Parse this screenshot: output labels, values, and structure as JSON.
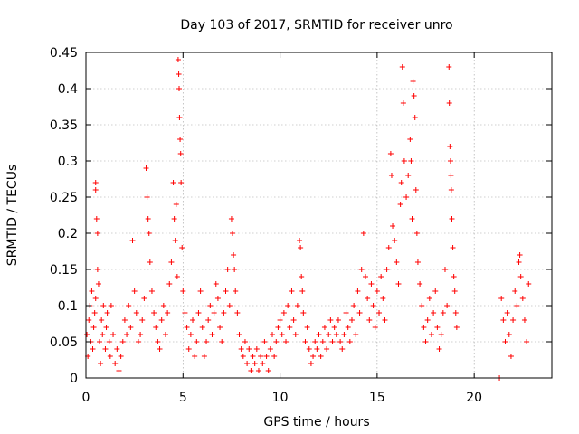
{
  "chart_data": {
    "type": "scatter",
    "title": "Day 103 of 2017, SRMTID for receiver unro",
    "xlabel": "GPS time / hours",
    "ylabel": "SRMTID / TECUs",
    "xlim": [
      0,
      24
    ],
    "ylim": [
      0,
      0.45
    ],
    "xticks": [
      0,
      5,
      10,
      15,
      20
    ],
    "yticks": [
      0,
      0.05,
      0.1,
      0.15,
      0.2,
      0.25,
      0.3,
      0.35,
      0.4,
      0.45
    ],
    "xtick_labels": [
      "0",
      "5",
      "10",
      "15",
      "20"
    ],
    "ytick_labels": [
      "0",
      "0.05",
      "0.1",
      "0.15",
      "0.2",
      "0.25",
      "0.3",
      "0.35",
      "0.4",
      "0.45"
    ],
    "marker": "+",
    "color": "#ff0000",
    "grid": true,
    "series": [
      {
        "name": "SRMTID",
        "points": [
          [
            0.05,
            0.06
          ],
          [
            0.1,
            0.03
          ],
          [
            0.15,
            0.08
          ],
          [
            0.2,
            0.1
          ],
          [
            0.25,
            0.05
          ],
          [
            0.3,
            0.12
          ],
          [
            0.35,
            0.04
          ],
          [
            0.4,
            0.07
          ],
          [
            0.45,
            0.09
          ],
          [
            0.5,
            0.11
          ],
          [
            0.5,
            0.27
          ],
          [
            0.5,
            0.26
          ],
          [
            0.55,
            0.22
          ],
          [
            0.6,
            0.2
          ],
          [
            0.6,
            0.15
          ],
          [
            0.65,
            0.13
          ],
          [
            0.7,
            0.05
          ],
          [
            0.75,
            0.02
          ],
          [
            0.8,
            0.08
          ],
          [
            0.85,
            0.06
          ],
          [
            0.9,
            0.1
          ],
          [
            1.0,
            0.04
          ],
          [
            1.05,
            0.07
          ],
          [
            1.1,
            0.09
          ],
          [
            1.2,
            0.05
          ],
          [
            1.25,
            0.03
          ],
          [
            1.3,
            0.1
          ],
          [
            1.4,
            0.06
          ],
          [
            1.5,
            0.02
          ],
          [
            1.6,
            0.04
          ],
          [
            1.7,
            0.01
          ],
          [
            1.8,
            0.03
          ],
          [
            1.9,
            0.05
          ],
          [
            2.0,
            0.08
          ],
          [
            2.1,
            0.06
          ],
          [
            2.2,
            0.1
          ],
          [
            2.3,
            0.07
          ],
          [
            2.4,
            0.19
          ],
          [
            2.5,
            0.12
          ],
          [
            2.6,
            0.09
          ],
          [
            2.7,
            0.05
          ],
          [
            2.8,
            0.06
          ],
          [
            2.9,
            0.08
          ],
          [
            3.0,
            0.11
          ],
          [
            3.1,
            0.29
          ],
          [
            3.15,
            0.25
          ],
          [
            3.2,
            0.22
          ],
          [
            3.25,
            0.2
          ],
          [
            3.3,
            0.16
          ],
          [
            3.4,
            0.12
          ],
          [
            3.5,
            0.09
          ],
          [
            3.6,
            0.07
          ],
          [
            3.7,
            0.05
          ],
          [
            3.8,
            0.04
          ],
          [
            3.9,
            0.08
          ],
          [
            4.0,
            0.1
          ],
          [
            4.1,
            0.06
          ],
          [
            4.2,
            0.09
          ],
          [
            4.3,
            0.13
          ],
          [
            4.4,
            0.16
          ],
          [
            4.5,
            0.27
          ],
          [
            4.55,
            0.22
          ],
          [
            4.6,
            0.19
          ],
          [
            4.65,
            0.24
          ],
          [
            4.7,
            0.14
          ],
          [
            4.75,
            0.44
          ],
          [
            4.78,
            0.42
          ],
          [
            4.8,
            0.4
          ],
          [
            4.82,
            0.36
          ],
          [
            4.85,
            0.33
          ],
          [
            4.88,
            0.31
          ],
          [
            4.9,
            0.27
          ],
          [
            4.95,
            0.18
          ],
          [
            5.0,
            0.12
          ],
          [
            5.1,
            0.09
          ],
          [
            5.2,
            0.07
          ],
          [
            5.3,
            0.04
          ],
          [
            5.4,
            0.06
          ],
          [
            5.5,
            0.08
          ],
          [
            5.6,
            0.03
          ],
          [
            5.7,
            0.05
          ],
          [
            5.8,
            0.09
          ],
          [
            5.9,
            0.12
          ],
          [
            6.0,
            0.07
          ],
          [
            6.1,
            0.03
          ],
          [
            6.2,
            0.05
          ],
          [
            6.3,
            0.08
          ],
          [
            6.4,
            0.1
          ],
          [
            6.5,
            0.06
          ],
          [
            6.6,
            0.09
          ],
          [
            6.7,
            0.13
          ],
          [
            6.8,
            0.11
          ],
          [
            6.9,
            0.07
          ],
          [
            7.0,
            0.05
          ],
          [
            7.1,
            0.09
          ],
          [
            7.2,
            0.12
          ],
          [
            7.3,
            0.15
          ],
          [
            7.4,
            0.1
          ],
          [
            7.5,
            0.22
          ],
          [
            7.55,
            0.2
          ],
          [
            7.6,
            0.17
          ],
          [
            7.65,
            0.15
          ],
          [
            7.7,
            0.12
          ],
          [
            7.8,
            0.09
          ],
          [
            7.9,
            0.06
          ],
          [
            8.0,
            0.04
          ],
          [
            8.1,
            0.03
          ],
          [
            8.2,
            0.05
          ],
          [
            8.3,
            0.02
          ],
          [
            8.4,
            0.04
          ],
          [
            8.5,
            0.01
          ],
          [
            8.6,
            0.03
          ],
          [
            8.7,
            0.02
          ],
          [
            8.8,
            0.04
          ],
          [
            8.9,
            0.01
          ],
          [
            9.0,
            0.03
          ],
          [
            9.1,
            0.02
          ],
          [
            9.2,
            0.05
          ],
          [
            9.3,
            0.03
          ],
          [
            9.4,
            0.01
          ],
          [
            9.5,
            0.04
          ],
          [
            9.6,
            0.06
          ],
          [
            9.7,
            0.03
          ],
          [
            9.8,
            0.05
          ],
          [
            9.9,
            0.07
          ],
          [
            10.0,
            0.08
          ],
          [
            10.1,
            0.06
          ],
          [
            10.2,
            0.09
          ],
          [
            10.3,
            0.05
          ],
          [
            10.4,
            0.1
          ],
          [
            10.5,
            0.07
          ],
          [
            10.6,
            0.12
          ],
          [
            10.7,
            0.08
          ],
          [
            10.8,
            0.06
          ],
          [
            10.9,
            0.1
          ],
          [
            11.0,
            0.19
          ],
          [
            11.05,
            0.18
          ],
          [
            11.1,
            0.14
          ],
          [
            11.15,
            0.12
          ],
          [
            11.2,
            0.09
          ],
          [
            11.3,
            0.05
          ],
          [
            11.4,
            0.07
          ],
          [
            11.5,
            0.04
          ],
          [
            11.6,
            0.02
          ],
          [
            11.7,
            0.03
          ],
          [
            11.8,
            0.05
          ],
          [
            11.9,
            0.04
          ],
          [
            12.0,
            0.06
          ],
          [
            12.1,
            0.03
          ],
          [
            12.2,
            0.05
          ],
          [
            12.3,
            0.07
          ],
          [
            12.4,
            0.04
          ],
          [
            12.5,
            0.06
          ],
          [
            12.6,
            0.08
          ],
          [
            12.7,
            0.05
          ],
          [
            12.8,
            0.07
          ],
          [
            12.9,
            0.06
          ],
          [
            13.0,
            0.08
          ],
          [
            13.1,
            0.05
          ],
          [
            13.2,
            0.04
          ],
          [
            13.3,
            0.06
          ],
          [
            13.4,
            0.09
          ],
          [
            13.5,
            0.07
          ],
          [
            13.6,
            0.05
          ],
          [
            13.7,
            0.08
          ],
          [
            13.8,
            0.1
          ],
          [
            13.9,
            0.06
          ],
          [
            14.0,
            0.12
          ],
          [
            14.1,
            0.09
          ],
          [
            14.2,
            0.15
          ],
          [
            14.3,
            0.2
          ],
          [
            14.4,
            0.14
          ],
          [
            14.5,
            0.11
          ],
          [
            14.6,
            0.08
          ],
          [
            14.7,
            0.13
          ],
          [
            14.8,
            0.1
          ],
          [
            14.9,
            0.07
          ],
          [
            15.0,
            0.12
          ],
          [
            15.1,
            0.09
          ],
          [
            15.2,
            0.14
          ],
          [
            15.3,
            0.11
          ],
          [
            15.4,
            0.08
          ],
          [
            15.5,
            0.15
          ],
          [
            15.6,
            0.18
          ],
          [
            15.7,
            0.31
          ],
          [
            15.75,
            0.28
          ],
          [
            15.8,
            0.21
          ],
          [
            15.9,
            0.19
          ],
          [
            16.0,
            0.16
          ],
          [
            16.1,
            0.13
          ],
          [
            16.2,
            0.24
          ],
          [
            16.25,
            0.27
          ],
          [
            16.3,
            0.43
          ],
          [
            16.35,
            0.38
          ],
          [
            16.4,
            0.3
          ],
          [
            16.5,
            0.25
          ],
          [
            16.6,
            0.28
          ],
          [
            16.7,
            0.33
          ],
          [
            16.75,
            0.3
          ],
          [
            16.8,
            0.22
          ],
          [
            16.85,
            0.41
          ],
          [
            16.9,
            0.39
          ],
          [
            16.95,
            0.36
          ],
          [
            17.0,
            0.26
          ],
          [
            17.05,
            0.2
          ],
          [
            17.1,
            0.16
          ],
          [
            17.2,
            0.13
          ],
          [
            17.3,
            0.1
          ],
          [
            17.4,
            0.07
          ],
          [
            17.5,
            0.05
          ],
          [
            17.6,
            0.08
          ],
          [
            17.7,
            0.11
          ],
          [
            17.8,
            0.06
          ],
          [
            17.9,
            0.09
          ],
          [
            18.0,
            0.12
          ],
          [
            18.1,
            0.07
          ],
          [
            18.2,
            0.04
          ],
          [
            18.3,
            0.06
          ],
          [
            18.4,
            0.09
          ],
          [
            18.5,
            0.15
          ],
          [
            18.6,
            0.1
          ],
          [
            18.7,
            0.43
          ],
          [
            18.72,
            0.38
          ],
          [
            18.75,
            0.32
          ],
          [
            18.78,
            0.3
          ],
          [
            18.8,
            0.28
          ],
          [
            18.82,
            0.26
          ],
          [
            18.85,
            0.22
          ],
          [
            18.9,
            0.18
          ],
          [
            18.95,
            0.14
          ],
          [
            19.0,
            0.12
          ],
          [
            19.05,
            0.09
          ],
          [
            19.1,
            0.07
          ],
          [
            21.3,
            0.0
          ],
          [
            21.4,
            0.11
          ],
          [
            21.5,
            0.08
          ],
          [
            21.6,
            0.05
          ],
          [
            21.7,
            0.09
          ],
          [
            21.8,
            0.06
          ],
          [
            21.9,
            0.03
          ],
          [
            22.0,
            0.08
          ],
          [
            22.1,
            0.12
          ],
          [
            22.2,
            0.1
          ],
          [
            22.3,
            0.16
          ],
          [
            22.35,
            0.17
          ],
          [
            22.4,
            0.14
          ],
          [
            22.5,
            0.11
          ],
          [
            22.6,
            0.08
          ],
          [
            22.7,
            0.05
          ],
          [
            22.8,
            0.13
          ]
        ]
      }
    ]
  }
}
